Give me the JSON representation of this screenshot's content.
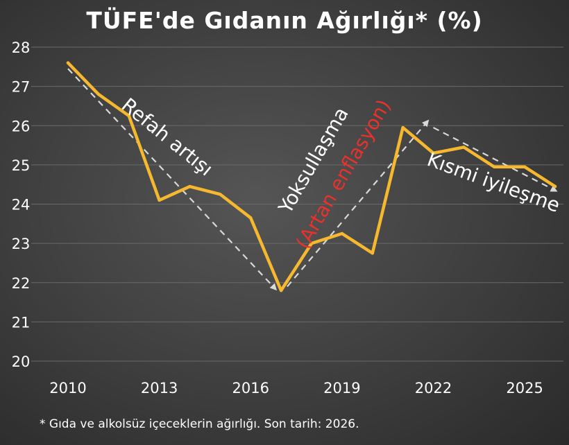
{
  "title": "TÜFE'de Gıdanın Ağırlığı* (%)",
  "footnote": "* Gıda ve alkolsüz içeceklerin ağırlığı. Son tarih: 2026.",
  "colors": {
    "line": "#F5B82E",
    "arrow": "#D9D9D9",
    "text": "#FFFFFF",
    "highlight": "#E8322B",
    "grid": "#6A6A6A"
  },
  "chart_data": {
    "type": "line",
    "title": "TÜFE'de Gıdanın Ağırlığı* (%)",
    "xlabel": "",
    "ylabel": "",
    "x": [
      2010,
      2011,
      2012,
      2013,
      2014,
      2015,
      2016,
      2017,
      2018,
      2019,
      2020,
      2021,
      2022,
      2023,
      2024,
      2025,
      2026
    ],
    "series": [
      {
        "values": [
          27.6,
          26.8,
          26.25,
          24.1,
          24.45,
          24.25,
          23.65,
          21.8,
          23.0,
          23.25,
          22.75,
          25.95,
          25.3,
          25.45,
          24.95,
          24.95,
          24.45
        ]
      }
    ],
    "ylim": [
      20,
      28
    ],
    "xlim": [
      2010,
      2026
    ],
    "yticks": [
      "20",
      "21",
      "22",
      "23",
      "24",
      "25",
      "26",
      "27",
      "28"
    ],
    "xticks": [
      "2010",
      "2013",
      "2016",
      "2019",
      "2022",
      "2025"
    ],
    "grid": true,
    "annotations": [
      {
        "text": "Refah artışı",
        "from": [
          2010,
          27.45
        ],
        "to": [
          2016.8,
          21.85
        ]
      },
      {
        "text": "Yoksullaşma",
        "from": [
          2017.2,
          21.9
        ],
        "to": [
          2021.8,
          26.1
        ]
      },
      {
        "text": "(Artan enflasyon)",
        "highlight": true
      },
      {
        "text": "Kısmi iyileşme",
        "from": [
          2022,
          25.95
        ],
        "to": [
          2026,
          24.35
        ]
      }
    ]
  }
}
